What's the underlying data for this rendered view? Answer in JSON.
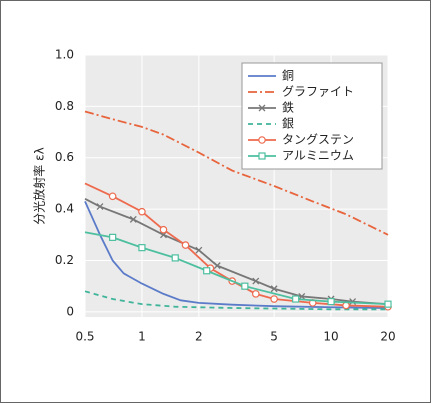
{
  "chart_data": {
    "type": "line",
    "ylabel": "分光放射率 ελ",
    "xlog": true,
    "grid": true,
    "legend": "upper right",
    "xlim": [
      0.5,
      20
    ],
    "xticks": [
      0.5,
      1,
      2,
      5,
      10,
      20
    ],
    "ylim": [
      -0.02,
      1.0
    ],
    "yticks": [
      0,
      0.2,
      0.4,
      0.6,
      0.8,
      {
        "value": 1.0,
        "label": "1.0"
      }
    ],
    "series": [
      {
        "name": "銅",
        "color": "#5b7bc9",
        "dash": "",
        "marker": "none",
        "x": [
          0.5,
          0.6,
          0.7,
          0.8,
          1,
          1.3,
          1.6,
          2,
          3,
          5,
          10,
          20
        ],
        "values": [
          0.43,
          0.3,
          0.2,
          0.15,
          0.11,
          0.07,
          0.045,
          0.035,
          0.028,
          0.022,
          0.018,
          0.015
        ]
      },
      {
        "name": "グラファイト",
        "color": "#e8643c",
        "dash": "9 3 2 3",
        "marker": "none",
        "x": [
          0.5,
          0.7,
          1,
          1.3,
          2,
          3,
          5,
          8,
          12,
          20
        ],
        "values": [
          0.78,
          0.75,
          0.72,
          0.69,
          0.62,
          0.55,
          0.49,
          0.43,
          0.38,
          0.3
        ]
      },
      {
        "name": "鉄",
        "color": "#777777",
        "dash": "",
        "marker": "x",
        "x": [
          0.5,
          0.6,
          0.9,
          1.3,
          2,
          2.5,
          4,
          5,
          7,
          10,
          13,
          20
        ],
        "values": [
          0.44,
          0.41,
          0.36,
          0.3,
          0.24,
          0.18,
          0.12,
          0.09,
          0.06,
          0.05,
          0.04,
          0.03
        ]
      },
      {
        "name": "銀",
        "color": "#3fb49a",
        "dash": "5 4",
        "marker": "none",
        "x": [
          0.5,
          0.7,
          1,
          1.5,
          3,
          10,
          20
        ],
        "values": [
          0.08,
          0.05,
          0.03,
          0.02,
          0.015,
          0.01,
          0.01
        ]
      },
      {
        "name": "タングステン",
        "color": "#ee6a4e",
        "dash": "",
        "marker": "o",
        "x": [
          0.5,
          0.7,
          1,
          1.3,
          1.7,
          2.3,
          3,
          4,
          5,
          8,
          12,
          20
        ],
        "values": [
          0.5,
          0.45,
          0.39,
          0.32,
          0.26,
          0.17,
          0.12,
          0.07,
          0.05,
          0.035,
          0.025,
          0.02
        ]
      },
      {
        "name": "アルミニウム",
        "color": "#4dbf9f",
        "dash": "",
        "marker": "s",
        "x": [
          0.5,
          0.7,
          1,
          1.5,
          2.2,
          3.5,
          6.5,
          10,
          20
        ],
        "values": [
          0.31,
          0.29,
          0.25,
          0.21,
          0.16,
          0.1,
          0.05,
          0.04,
          0.03
        ]
      }
    ]
  }
}
